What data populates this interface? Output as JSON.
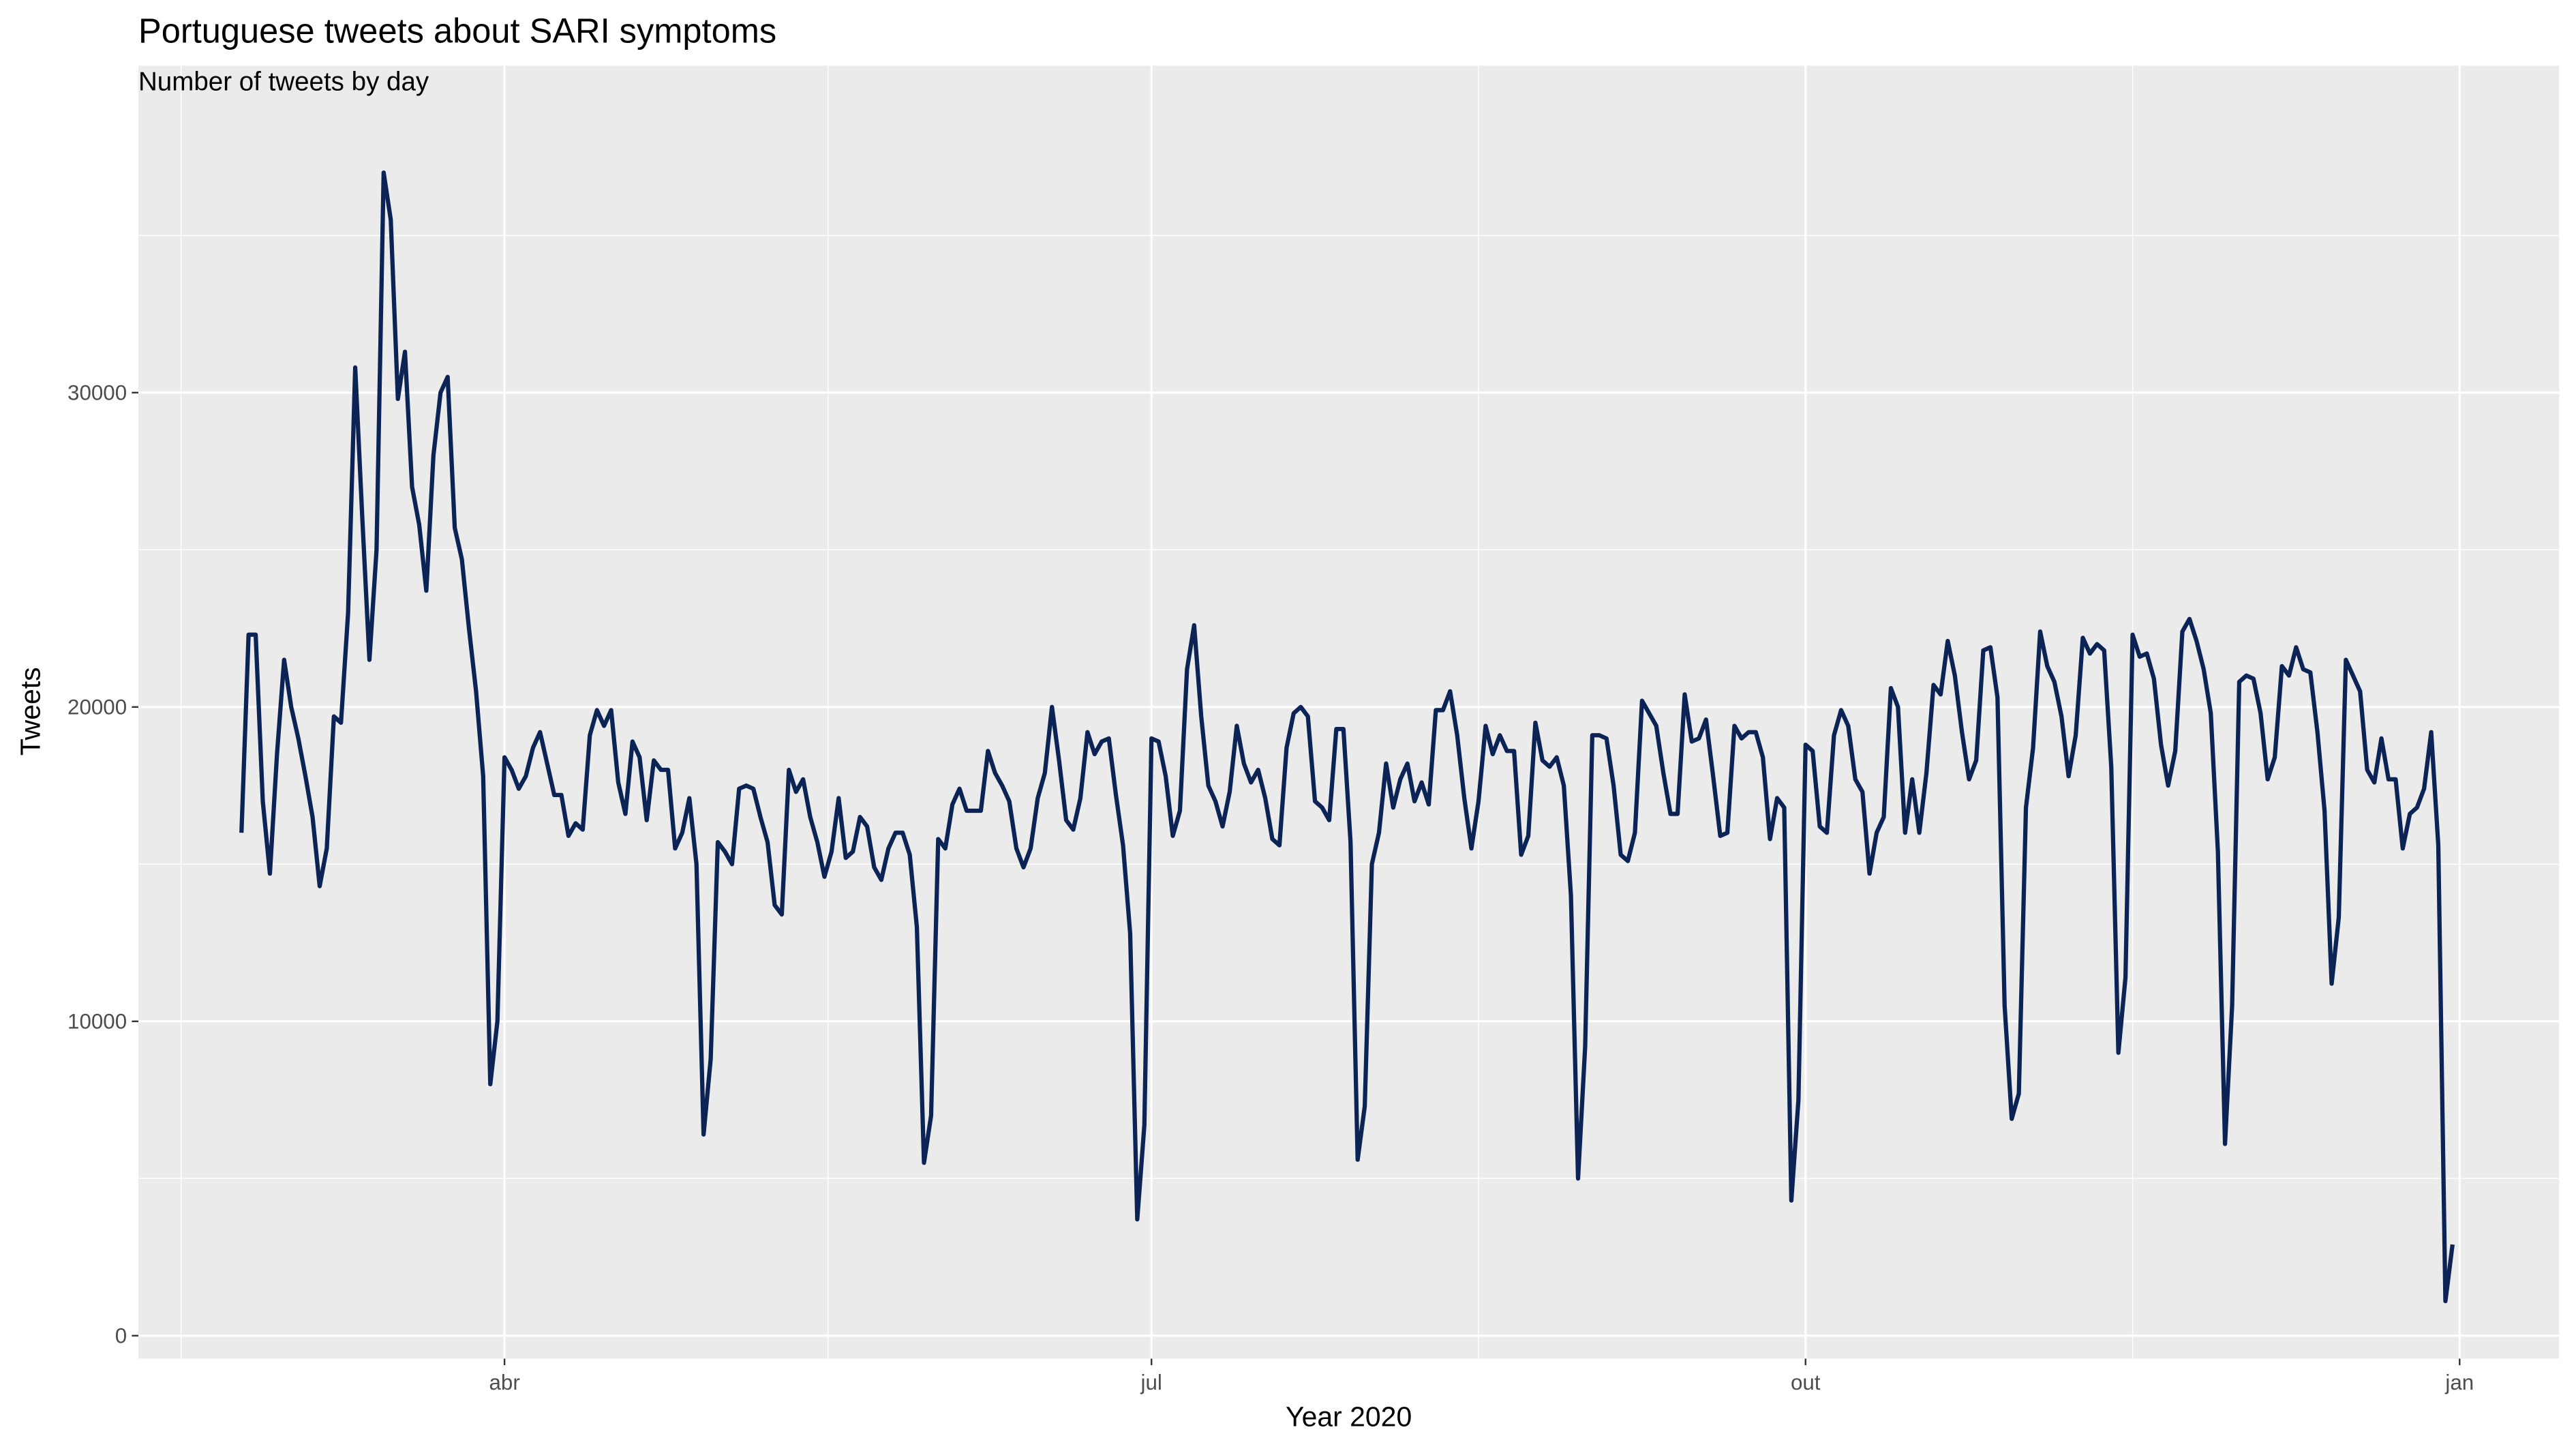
{
  "chart_data": {
    "type": "line",
    "title": "Portuguese tweets about SARI symptoms",
    "subtitle": "Number of tweets by day",
    "x_label": "Year 2020",
    "y_label": "Tweets",
    "color": "#0b2455",
    "grid": true,
    "xlim": [
      40.5,
      381
    ],
    "ylim": [
      -730,
      40400
    ],
    "xticks": [
      {
        "value": 92,
        "label": "abr"
      },
      {
        "value": 183,
        "label": "jul"
      },
      {
        "value": 275,
        "label": "out"
      },
      {
        "value": 367,
        "label": "jan"
      }
    ],
    "x_minor_ticks": [
      46.5,
      137.5,
      229,
      321
    ],
    "yticks": [
      0,
      10000,
      20000,
      30000
    ],
    "y_minor_ticks": [
      5000,
      15000,
      25000,
      35000
    ],
    "x": [
      55,
      56,
      57,
      58,
      59,
      60,
      61,
      62,
      63,
      64,
      65,
      66,
      67,
      68,
      69,
      70,
      71,
      72,
      73,
      74,
      75,
      76,
      77,
      78,
      79,
      80,
      81,
      82,
      83,
      84,
      85,
      86,
      87,
      88,
      89,
      90,
      91,
      92,
      93,
      94,
      95,
      96,
      97,
      98,
      99,
      100,
      101,
      102,
      103,
      104,
      105,
      106,
      107,
      108,
      109,
      110,
      111,
      112,
      113,
      114,
      115,
      116,
      117,
      118,
      119,
      120,
      121,
      122,
      123,
      124,
      125,
      126,
      127,
      128,
      129,
      130,
      131,
      132,
      133,
      134,
      135,
      136,
      137,
      138,
      139,
      140,
      141,
      142,
      143,
      144,
      145,
      146,
      147,
      148,
      149,
      150,
      151,
      152,
      153,
      154,
      155,
      156,
      157,
      158,
      159,
      160,
      161,
      162,
      163,
      164,
      165,
      166,
      167,
      168,
      169,
      170,
      171,
      172,
      173,
      174,
      175,
      176,
      177,
      178,
      179,
      180,
      181,
      182,
      183,
      184,
      185,
      186,
      187,
      188,
      189,
      190,
      191,
      192,
      193,
      194,
      195,
      196,
      197,
      198,
      199,
      200,
      201,
      202,
      203,
      204,
      205,
      206,
      207,
      208,
      209,
      210,
      211,
      212,
      213,
      214,
      215,
      216,
      217,
      218,
      219,
      220,
      221,
      222,
      223,
      224,
      225,
      226,
      227,
      228,
      229,
      230,
      231,
      232,
      233,
      234,
      235,
      236,
      237,
      238,
      239,
      240,
      241,
      242,
      243,
      244,
      245,
      246,
      247,
      248,
      249,
      250,
      251,
      252,
      253,
      254,
      255,
      256,
      257,
      258,
      259,
      260,
      261,
      262,
      263,
      264,
      265,
      266,
      267,
      268,
      269,
      270,
      271,
      272,
      273,
      274,
      275,
      276,
      277,
      278,
      279,
      280,
      281,
      282,
      283,
      284,
      285,
      286,
      287,
      288,
      289,
      290,
      291,
      292,
      293,
      294,
      295,
      296,
      297,
      298,
      299,
      300,
      301,
      302,
      303,
      304,
      305,
      306,
      307,
      308,
      309,
      310,
      311,
      312,
      313,
      314,
      315,
      316,
      317,
      318,
      319,
      320,
      321,
      322,
      323,
      324,
      325,
      326,
      327,
      328,
      329,
      330,
      331,
      332,
      333,
      334,
      335,
      336,
      337,
      338,
      339,
      340,
      341,
      342,
      343,
      344,
      345,
      346,
      347,
      348,
      349,
      350,
      351,
      352,
      353,
      354,
      355,
      356,
      357,
      358,
      359,
      360,
      361,
      362,
      363,
      364,
      365,
      366
    ],
    "values": [
      16000,
      22300,
      22300,
      17000,
      14700,
      18500,
      21500,
      20000,
      19000,
      17800,
      16500,
      14300,
      15500,
      19700,
      19500,
      23000,
      30800,
      26000,
      21500,
      25000,
      37000,
      35500,
      29800,
      31300,
      27000,
      25800,
      23700,
      28000,
      30000,
      30500,
      25700,
      24700,
      22500,
      20500,
      17800,
      8000,
      10000,
      18400,
      18000,
      17400,
      17800,
      18700,
      19200,
      18200,
      17200,
      17200,
      15900,
      16300,
      16100,
      19100,
      19900,
      19400,
      19900,
      17600,
      16600,
      18900,
      18400,
      16400,
      18300,
      18000,
      18000,
      15500,
      16000,
      17100,
      15000,
      6400,
      8800,
      15700,
      15400,
      15000,
      17400,
      17500,
      17400,
      16500,
      15700,
      13700,
      13400,
      18000,
      17300,
      17700,
      16500,
      15700,
      14600,
      15400,
      17100,
      15200,
      15400,
      16500,
      16200,
      14900,
      14500,
      15500,
      16000,
      16000,
      15300,
      13000,
      5500,
      7000,
      15800,
      15500,
      16900,
      17400,
      16700,
      16700,
      16700,
      18600,
      17900,
      17500,
      17000,
      15500,
      14900,
      15500,
      17100,
      17900,
      20000,
      18300,
      16400,
      16100,
      17100,
      19200,
      18500,
      18900,
      19000,
      17200,
      15600,
      12800,
      3700,
      6700,
      19000,
      18900,
      17800,
      15900,
      16700,
      21200,
      22600,
      19700,
      17500,
      17000,
      16200,
      17300,
      19400,
      18200,
      17600,
      18000,
      17100,
      15800,
      15600,
      18700,
      19800,
      20000,
      19700,
      17000,
      16800,
      16400,
      19300,
      19300,
      15700,
      5600,
      7300,
      15000,
      16000,
      18200,
      16800,
      17700,
      18200,
      17000,
      17600,
      16900,
      19900,
      19900,
      20500,
      19100,
      17100,
      15500,
      17000,
      19400,
      18500,
      19100,
      18600,
      18600,
      15300,
      15900,
      19500,
      18300,
      18100,
      18400,
      17500,
      14000,
      5000,
      9200,
      19100,
      19100,
      19000,
      17500,
      15300,
      15100,
      16000,
      20200,
      19800,
      19400,
      17900,
      16600,
      16600,
      20400,
      18900,
      19000,
      19600,
      17800,
      15900,
      16000,
      19400,
      19000,
      19200,
      19200,
      18400,
      15800,
      17100,
      16800,
      4300,
      7500,
      18800,
      18600,
      16200,
      16000,
      19100,
      19900,
      19400,
      17700,
      17300,
      14700,
      16000,
      16500,
      20600,
      20000,
      16000,
      17700,
      16000,
      17900,
      20700,
      20400,
      22100,
      21000,
      19200,
      17700,
      18300,
      21800,
      21900,
      20300,
      10500,
      6900,
      7700,
      16800,
      18700,
      22400,
      21300,
      20800,
      19700,
      17800,
      19100,
      22200,
      21700,
      22000,
      21800,
      18100,
      9000,
      11400,
      22300,
      21600,
      21700,
      20900,
      18800,
      17500,
      18600,
      22400,
      22800,
      22100,
      21200,
      19800,
      15400,
      6100,
      10500,
      20800,
      21000,
      20900,
      19800,
      17700,
      18400,
      21300,
      21000,
      21900,
      21200,
      21100,
      19200,
      16700,
      11200,
      13300,
      21500,
      21000,
      20500,
      18000,
      17600,
      19000,
      17700,
      17700,
      15500,
      16600,
      16800,
      17400,
      19200,
      15600,
      1100,
      2900
    ]
  }
}
